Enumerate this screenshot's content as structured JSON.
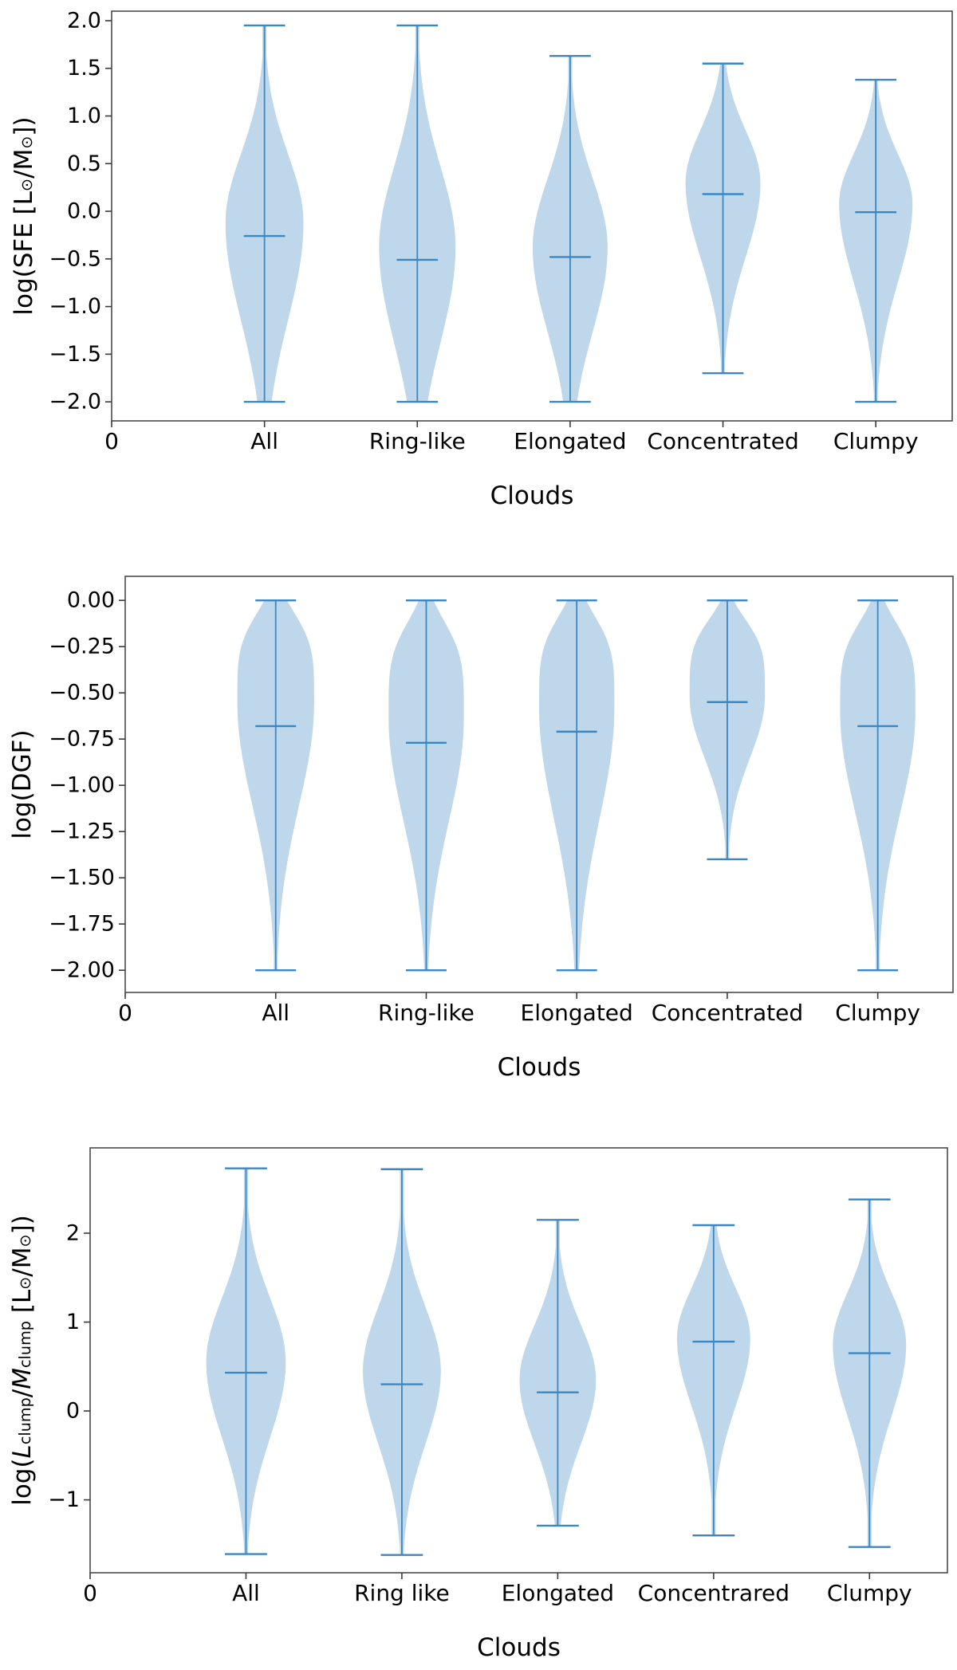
{
  "figure": {
    "background": "#ffffff",
    "panel_count": 3
  },
  "colors": {
    "violin_fill": "#bed7eb",
    "violin_line": "#3b87c4",
    "spine": "#4a4a4a",
    "tick": "#3a3a3a",
    "text": "#000000"
  },
  "chart_data": [
    {
      "type": "violin",
      "id": "sfe",
      "ylabel_text": "log(SFE [L⊙/M⊙])",
      "ylabel_segments": [
        {
          "t": "log(SFE [L"
        },
        {
          "t": "⊙",
          "sub": true
        },
        {
          "t": "/M"
        },
        {
          "t": "⊙",
          "sub": true
        },
        {
          "t": "])"
        }
      ],
      "xlabel": "Clouds",
      "xlim": [
        0,
        5.5
      ],
      "ylim": [
        -2.2,
        2.1
      ],
      "xticks": [
        0,
        1,
        2,
        3,
        4,
        5
      ],
      "xtick_labels": [
        "0",
        "All",
        "Ring-like",
        "Elongated",
        "Concentrated",
        "Clumpy"
      ],
      "ytick_values": [
        2.0,
        1.5,
        1.0,
        0.5,
        0.0,
        -0.5,
        -1.0,
        -1.5,
        -2.0
      ],
      "ytick_labels": [
        "2.0",
        "1.5",
        "1.0",
        "0.5",
        "0.0",
        "−0.5",
        "−1.0",
        "−1.5",
        "−2.0"
      ],
      "categories": [
        "All",
        "Ring-like",
        "Elongated",
        "Concentrated",
        "Clumpy"
      ],
      "violins": [
        {
          "category": "All",
          "position": 1,
          "whisker_min": -2.0,
          "whisker_max": 1.95,
          "median": -0.26,
          "kde_mode": -0.12,
          "kde_sigma_upper": 0.72,
          "kde_sigma_lower": 1.02,
          "halfwidth": 0.255
        },
        {
          "category": "Ring-like",
          "position": 2,
          "whisker_min": -2.0,
          "whisker_max": 1.95,
          "median": -0.51,
          "kde_mode": -0.38,
          "kde_sigma_upper": 0.85,
          "kde_sigma_lower": 1.0,
          "halfwidth": 0.25
        },
        {
          "category": "Elongated",
          "position": 3,
          "whisker_min": -2.0,
          "whisker_max": 1.63,
          "median": -0.48,
          "kde_mode": -0.38,
          "kde_sigma_upper": 0.72,
          "kde_sigma_lower": 0.88,
          "halfwidth": 0.245
        },
        {
          "category": "Concentrated",
          "position": 4,
          "whisker_min": -1.7,
          "whisker_max": 1.55,
          "median": 0.18,
          "kde_mode": 0.3,
          "kde_sigma_upper": 0.55,
          "kde_sigma_lower": 0.78,
          "halfwidth": 0.245
        },
        {
          "category": "Clumpy",
          "position": 5,
          "whisker_min": -2.0,
          "whisker_max": 1.38,
          "median": -0.01,
          "kde_mode": 0.08,
          "kde_sigma_upper": 0.52,
          "kde_sigma_lower": 0.82,
          "halfwidth": 0.24
        }
      ]
    },
    {
      "type": "violin",
      "id": "dgf",
      "ylabel_text": "log(DGF)",
      "ylabel_segments": [
        {
          "t": "log(DGF)"
        }
      ],
      "xlabel": "Clouds",
      "xlim": [
        0,
        5.5
      ],
      "ylim": [
        -2.12,
        0.13
      ],
      "xticks": [
        0,
        1,
        2,
        3,
        4,
        5
      ],
      "xtick_labels": [
        "0",
        "All",
        "Ring-like",
        "Elongated",
        "Concentrated",
        "Clumpy"
      ],
      "ytick_values": [
        0.0,
        -0.25,
        -0.5,
        -0.75,
        -1.0,
        -1.25,
        -1.5,
        -1.75,
        -2.0
      ],
      "ytick_labels": [
        "0.00",
        "−0.25",
        "−0.50",
        "−0.75",
        "−1.00",
        "−1.25",
        "−1.50",
        "−1.75",
        "−2.00"
      ],
      "categories": [
        "All",
        "Ring-like",
        "Elongated",
        "Concentrated",
        "Clumpy"
      ],
      "violins": [
        {
          "category": "All",
          "position": 1,
          "whisker_min": -2.0,
          "whisker_max": 0.0,
          "median": -0.68,
          "kde_mode": -0.55,
          "kde_sigma_upper": 0.44,
          "kde_sigma_lower": 0.56,
          "kde_power_upper": 4,
          "halfwidth": 0.255
        },
        {
          "category": "Ring-like",
          "position": 2,
          "whisker_min": -2.0,
          "whisker_max": 0.0,
          "median": -0.77,
          "kde_mode": -0.63,
          "kde_sigma_upper": 0.47,
          "kde_sigma_lower": 0.56,
          "kde_power_upper": 4,
          "halfwidth": 0.25
        },
        {
          "category": "Elongated",
          "position": 3,
          "whisker_min": -2.0,
          "whisker_max": 0.0,
          "median": -0.71,
          "kde_mode": -0.58,
          "kde_sigma_upper": 0.45,
          "kde_sigma_lower": 0.6,
          "kde_power_upper": 4,
          "halfwidth": 0.25
        },
        {
          "category": "Concentrated",
          "position": 4,
          "whisker_min": -1.4,
          "whisker_max": 0.0,
          "median": -0.55,
          "kde_mode": -0.52,
          "kde_sigma_upper": 0.38,
          "kde_sigma_lower": 0.33,
          "kde_power_upper": 4,
          "halfwidth": 0.25
        },
        {
          "category": "Clumpy",
          "position": 5,
          "whisker_min": -2.0,
          "whisker_max": 0.0,
          "median": -0.68,
          "kde_mode": -0.6,
          "kde_sigma_upper": 0.44,
          "kde_sigma_lower": 0.54,
          "kde_power_upper": 4,
          "halfwidth": 0.25
        }
      ]
    },
    {
      "type": "violin",
      "id": "clump",
      "ylabel_text": "log(L_clump/M_clump [L⊙/M⊙])",
      "ylabel_segments": [
        {
          "t": "log("
        },
        {
          "t": "L",
          "italic": true
        },
        {
          "t": "clump",
          "sub": true
        },
        {
          "t": "/"
        },
        {
          "t": "M",
          "italic": true
        },
        {
          "t": "clump",
          "sub": true
        },
        {
          "t": " [L"
        },
        {
          "t": "⊙",
          "sub": true
        },
        {
          "t": "/M"
        },
        {
          "t": "⊙",
          "sub": true
        },
        {
          "t": "])"
        }
      ],
      "xlabel": "Clouds",
      "xlim": [
        0,
        5.5
      ],
      "ylim": [
        -1.82,
        2.96
      ],
      "xticks": [
        0,
        1,
        2,
        3,
        4,
        5
      ],
      "xtick_labels": [
        "0",
        "All",
        "Ring like",
        "Elongated",
        "Concentrared",
        "Clumpy"
      ],
      "ytick_values": [
        2,
        1,
        0,
        -1
      ],
      "ytick_labels": [
        "2",
        "1",
        "0",
        "−1"
      ],
      "categories": [
        "All",
        "Ring like",
        "Elongated",
        "Concentrared",
        "Clumpy"
      ],
      "violins": [
        {
          "category": "All",
          "position": 1,
          "whisker_min": -1.61,
          "whisker_max": 2.73,
          "median": 0.43,
          "kde_mode": 0.55,
          "kde_sigma_upper": 0.72,
          "kde_sigma_lower": 0.85,
          "halfwidth": 0.255
        },
        {
          "category": "Ring like",
          "position": 2,
          "whisker_min": -1.62,
          "whisker_max": 2.72,
          "median": 0.3,
          "kde_mode": 0.45,
          "kde_sigma_upper": 0.72,
          "kde_sigma_lower": 0.82,
          "halfwidth": 0.25
        },
        {
          "category": "Elongated",
          "position": 3,
          "whisker_min": -1.29,
          "whisker_max": 2.15,
          "median": 0.21,
          "kde_mode": 0.35,
          "kde_sigma_upper": 0.62,
          "kde_sigma_lower": 0.72,
          "halfwidth": 0.245
        },
        {
          "category": "Concentrared",
          "position": 4,
          "whisker_min": -1.4,
          "whisker_max": 2.09,
          "median": 0.78,
          "kde_mode": 0.82,
          "kde_sigma_upper": 0.56,
          "kde_sigma_lower": 0.76,
          "halfwidth": 0.235
        },
        {
          "category": "Clumpy",
          "position": 5,
          "whisker_min": -1.53,
          "whisker_max": 2.38,
          "median": 0.65,
          "kde_mode": 0.75,
          "kde_sigma_upper": 0.58,
          "kde_sigma_lower": 0.8,
          "halfwidth": 0.235
        }
      ]
    }
  ]
}
